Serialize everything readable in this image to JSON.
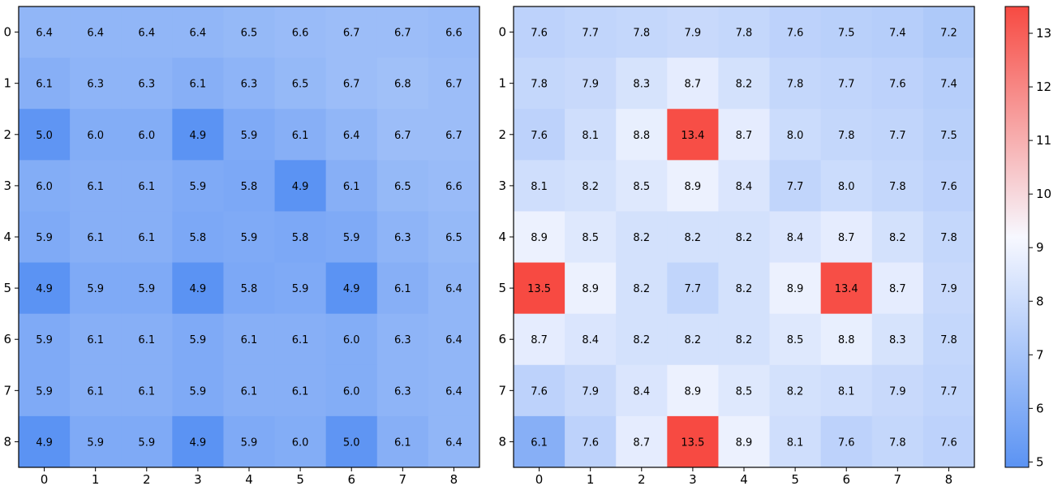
{
  "chart_data": [
    {
      "type": "heatmap",
      "x_ticks": [
        "0",
        "1",
        "2",
        "3",
        "4",
        "5",
        "6",
        "7",
        "8"
      ],
      "y_ticks": [
        "0",
        "1",
        "2",
        "3",
        "4",
        "5",
        "6",
        "7",
        "8"
      ],
      "values": [
        [
          6.4,
          6.4,
          6.4,
          6.4,
          6.5,
          6.6,
          6.7,
          6.7,
          6.6
        ],
        [
          6.1,
          6.3,
          6.3,
          6.1,
          6.3,
          6.5,
          6.7,
          6.8,
          6.7
        ],
        [
          5.0,
          6.0,
          6.0,
          4.9,
          5.9,
          6.1,
          6.4,
          6.7,
          6.7
        ],
        [
          6.0,
          6.1,
          6.1,
          5.9,
          5.8,
          4.9,
          6.1,
          6.5,
          6.6
        ],
        [
          5.9,
          6.1,
          6.1,
          5.8,
          5.9,
          5.8,
          5.9,
          6.3,
          6.5
        ],
        [
          4.9,
          5.9,
          5.9,
          4.9,
          5.8,
          5.9,
          4.9,
          6.1,
          6.4
        ],
        [
          5.9,
          6.1,
          6.1,
          5.9,
          6.1,
          6.1,
          6.0,
          6.3,
          6.4
        ],
        [
          5.9,
          6.1,
          6.1,
          5.9,
          6.1,
          6.1,
          6.0,
          6.3,
          6.4
        ],
        [
          4.9,
          5.9,
          5.9,
          4.9,
          5.9,
          6.0,
          5.0,
          6.1,
          6.4
        ]
      ]
    },
    {
      "type": "heatmap",
      "x_ticks": [
        "0",
        "1",
        "2",
        "3",
        "4",
        "5",
        "6",
        "7",
        "8"
      ],
      "y_ticks": [
        "0",
        "1",
        "2",
        "3",
        "4",
        "5",
        "6",
        "7",
        "8"
      ],
      "values": [
        [
          7.6,
          7.7,
          7.8,
          7.9,
          7.8,
          7.6,
          7.5,
          7.4,
          7.2
        ],
        [
          7.8,
          7.9,
          8.3,
          8.7,
          8.2,
          7.8,
          7.7,
          7.6,
          7.4
        ],
        [
          7.6,
          8.1,
          8.8,
          13.4,
          8.7,
          8.0,
          7.8,
          7.7,
          7.5
        ],
        [
          8.1,
          8.2,
          8.5,
          8.9,
          8.4,
          7.7,
          8.0,
          7.8,
          7.6
        ],
        [
          8.9,
          8.5,
          8.2,
          8.2,
          8.2,
          8.4,
          8.7,
          8.2,
          7.8
        ],
        [
          13.5,
          8.9,
          8.2,
          7.7,
          8.2,
          8.9,
          13.4,
          8.7,
          7.9
        ],
        [
          8.7,
          8.4,
          8.2,
          8.2,
          8.2,
          8.5,
          8.8,
          8.3,
          7.8
        ],
        [
          7.6,
          7.9,
          8.4,
          8.9,
          8.5,
          8.2,
          8.1,
          7.9,
          7.7
        ],
        [
          6.1,
          7.6,
          8.7,
          13.5,
          8.9,
          8.1,
          7.6,
          7.8,
          7.6
        ]
      ]
    }
  ],
  "colorbar": {
    "vmin": 4.9,
    "vmax": 13.5,
    "ticks": [
      "5",
      "6",
      "7",
      "8",
      "9",
      "10",
      "11",
      "12",
      "13"
    ],
    "colormap": {
      "low": "#5b93f3",
      "mid": "#f7f8ff",
      "high": "#f74a42"
    }
  }
}
